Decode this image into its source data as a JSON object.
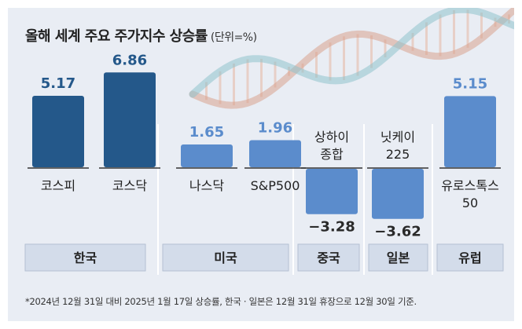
{
  "chart_data": {
    "type": "bar",
    "title": "올해 세계 주요 주가지수 상승률",
    "unit": "(단위=%)",
    "categories": [
      "코스피",
      "코스닥",
      "나스닥",
      "S&P500",
      "상하이\n종합",
      "닛케이\n225",
      "유로스톡스\n50"
    ],
    "values": [
      5.17,
      6.86,
      1.65,
      1.96,
      -3.28,
      -3.62,
      5.15
    ],
    "value_labels": [
      "5.17",
      "6.86",
      "1.65",
      "1.96",
      "−3.28",
      "−3.62",
      "5.15"
    ],
    "groups": [
      {
        "name": "한국",
        "members": [
          0,
          1
        ]
      },
      {
        "name": "미국",
        "members": [
          2,
          3
        ]
      },
      {
        "name": "중국",
        "members": [
          4
        ]
      },
      {
        "name": "일본",
        "members": [
          5
        ]
      },
      {
        "name": "유럽",
        "members": [
          6
        ]
      }
    ],
    "colors": {
      "korea": "#24588a",
      "other": "#5b8ccc",
      "negative_value": "#2a2a2a",
      "background": "#e9edf4",
      "group_box": "#d3dcea"
    },
    "footnote": "*2024년 12월 31일 대비 2025년 1월 17일 상승률, 한국 · 일본은 12월 31일 휴장으로 12월 30일 기준."
  }
}
